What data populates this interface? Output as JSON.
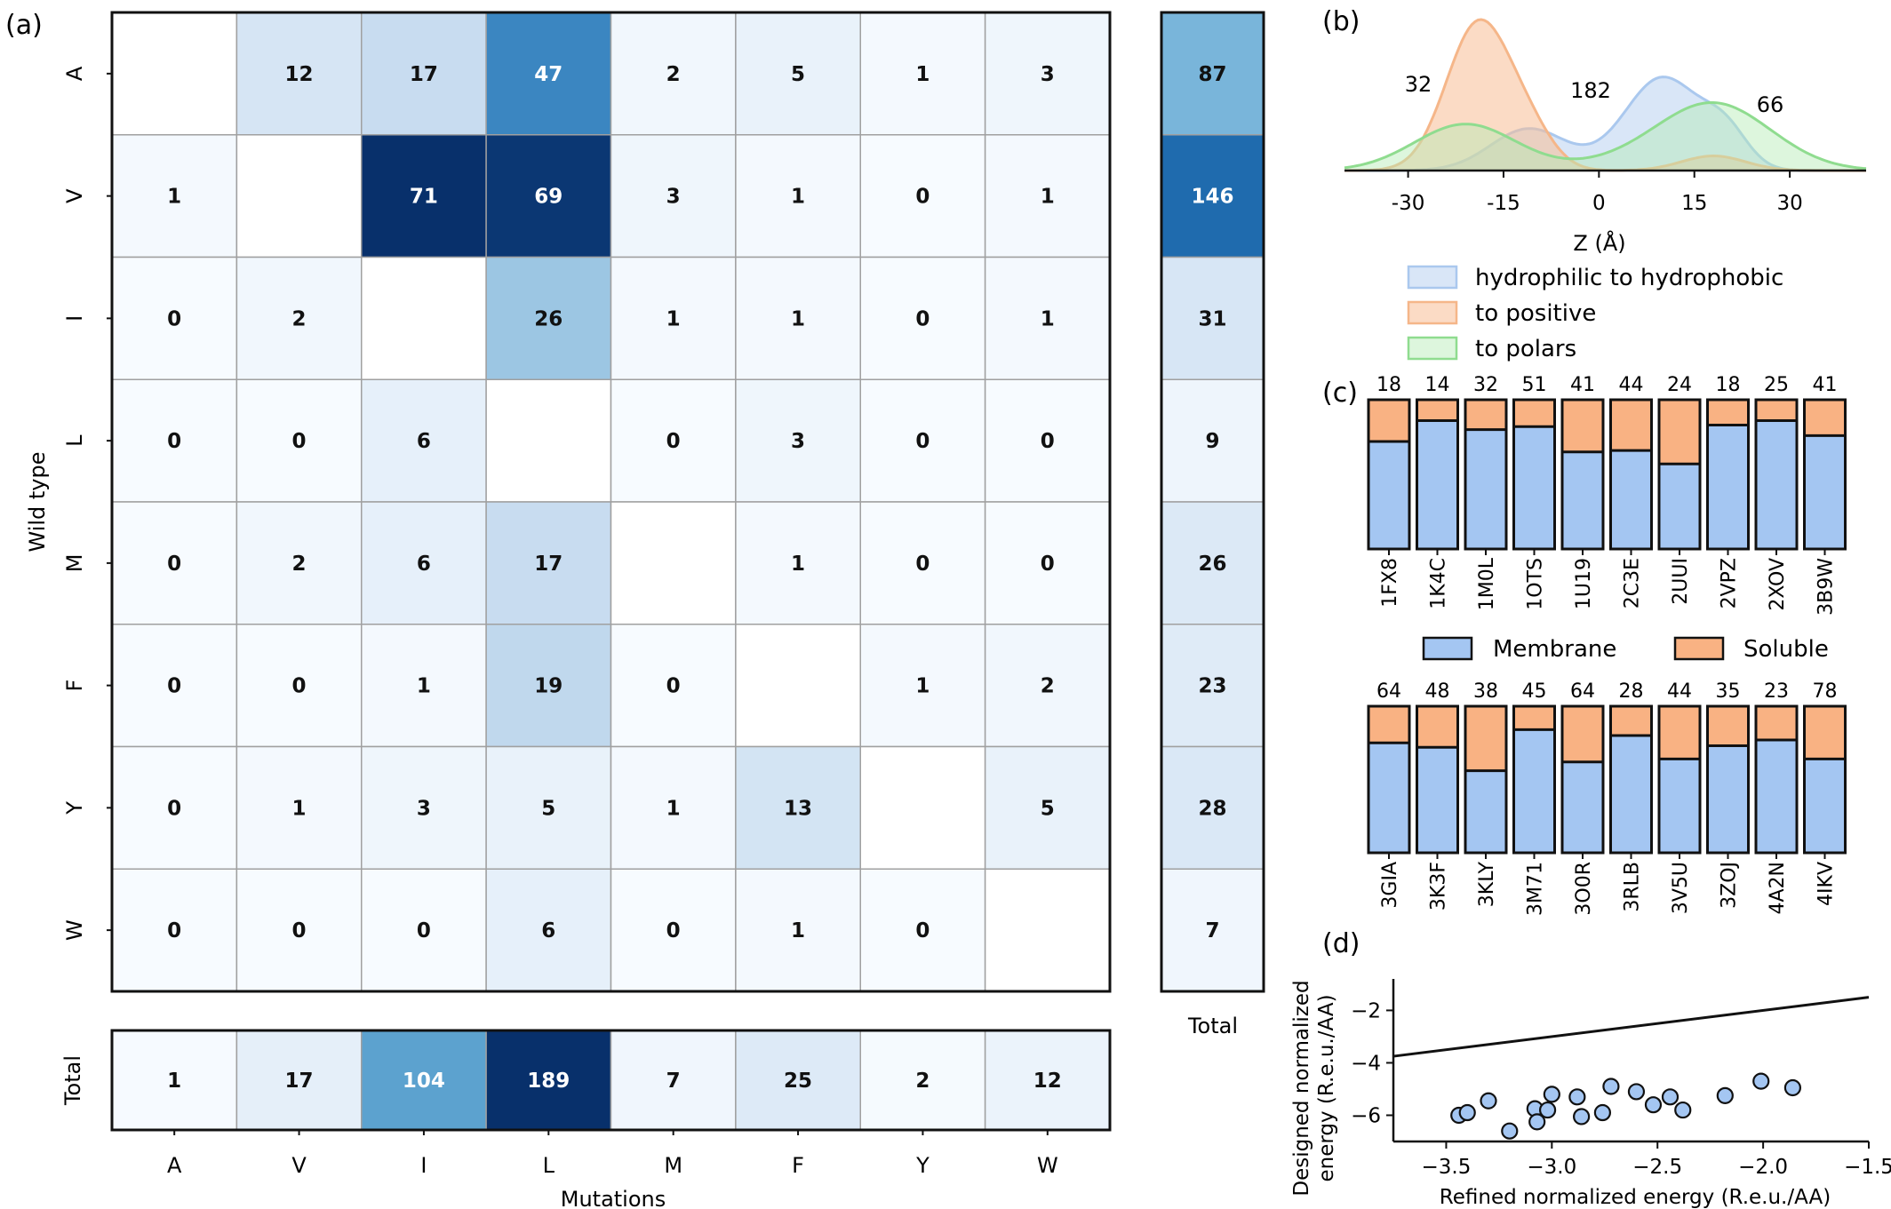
{
  "figure": {
    "panel_labels": [
      "(a)",
      "(b)",
      "(c)",
      "(d)"
    ]
  },
  "chart_data": [
    {
      "panel": "(a)",
      "type": "heatmap",
      "colormap": [
        "#f7fbff",
        "#c6dbef",
        "#6baed6",
        "#2171b5",
        "#08306b"
      ],
      "xlabel": "Mutations",
      "ylabel": "Wild type",
      "x_labels": [
        "A",
        "V",
        "I",
        "L",
        "M",
        "F",
        "Y",
        "W"
      ],
      "y_labels": [
        "A",
        "V",
        "I",
        "L",
        "M",
        "F",
        "Y",
        "W"
      ],
      "matrix": [
        [
          null,
          12,
          17,
          47,
          2,
          5,
          1,
          3
        ],
        [
          1,
          null,
          71,
          69,
          3,
          1,
          0,
          1
        ],
        [
          0,
          2,
          null,
          26,
          1,
          1,
          0,
          1
        ],
        [
          0,
          0,
          6,
          null,
          0,
          3,
          0,
          0
        ],
        [
          0,
          2,
          6,
          17,
          null,
          1,
          0,
          0
        ],
        [
          0,
          0,
          1,
          19,
          0,
          null,
          1,
          2
        ],
        [
          0,
          1,
          3,
          5,
          1,
          13,
          null,
          5
        ],
        [
          0,
          0,
          0,
          6,
          0,
          1,
          0,
          null
        ]
      ],
      "vmax": 71,
      "row_totals": [
        87,
        146,
        31,
        9,
        26,
        23,
        28,
        7
      ],
      "row_totals_vmax": 189,
      "col_totals": [
        1,
        17,
        104,
        189,
        7,
        25,
        2,
        12
      ],
      "col_totals_vmax": 189,
      "total_label": "Total"
    },
    {
      "panel": "(b)",
      "type": "area",
      "xlabel": "Z (Å)",
      "x_ticks": [
        -30,
        -15,
        0,
        15,
        30
      ],
      "xlim": [
        -40,
        42
      ],
      "series": [
        {
          "name": "hydrophilic to hydrophobic",
          "color": "#aac8ee",
          "fill": "rgba(170,200,238,0.45)",
          "count_label": "182",
          "gaussians": [
            [
              0.45,
              -11,
              6
            ],
            [
              1.0,
              10,
              6
            ],
            [
              0.35,
              20,
              3.5
            ]
          ]
        },
        {
          "name": "to positive",
          "color": "#f5b689",
          "fill": "rgba(248,190,150,0.55)",
          "count_label": "32",
          "gaussians": [
            [
              1.0,
              -19,
              5
            ],
            [
              0.22,
              -11,
              4
            ],
            [
              0.1,
              18,
              5
            ]
          ]
        },
        {
          "name": "to polars",
          "color": "#8fdc8f",
          "fill": "rgba(180,235,180,0.45)",
          "count_label": "66",
          "gaussians": [
            [
              0.45,
              -21,
              8
            ],
            [
              0.05,
              3,
              8
            ],
            [
              0.65,
              18,
              9
            ]
          ]
        }
      ]
    },
    {
      "panel": "(c)",
      "type": "bar",
      "stacked": true,
      "y_unit": "fraction",
      "legend": [
        "Membrane",
        "Soluble"
      ],
      "colors": {
        "Membrane": "#a4c6f2",
        "Soluble": "#f9b283"
      },
      "groups": [
        {
          "categories": [
            "1FX8",
            "1K4C",
            "1M0L",
            "1OTS",
            "1U19",
            "2C3E",
            "2UUI",
            "2VPZ",
            "2XOV",
            "3B9W"
          ],
          "totals": [
            18,
            14,
            32,
            51,
            41,
            44,
            24,
            18,
            25,
            41
          ],
          "membrane_fraction": [
            0.72,
            0.86,
            0.8,
            0.82,
            0.65,
            0.66,
            0.57,
            0.83,
            0.86,
            0.76
          ]
        },
        {
          "categories": [
            "3GIA",
            "3K3F",
            "3KLY",
            "3M71",
            "3O0R",
            "3RLB",
            "3V5U",
            "3ZOJ",
            "4A2N",
            "4IKV"
          ],
          "totals": [
            64,
            48,
            38,
            45,
            64,
            28,
            44,
            35,
            23,
            78
          ],
          "membrane_fraction": [
            0.75,
            0.72,
            0.56,
            0.84,
            0.62,
            0.8,
            0.64,
            0.73,
            0.77,
            0.64
          ]
        }
      ]
    },
    {
      "panel": "(d)",
      "type": "scatter",
      "xlabel": "Refined normalized energy (R.e.u./AA)",
      "ylabel_lines": [
        "Designed normalized",
        "energy (R.e.u./AA)"
      ],
      "xlim": [
        -3.75,
        -1.5
      ],
      "ylim": [
        -7.0,
        -0.8
      ],
      "x_ticks": [
        -3.5,
        -3.0,
        -2.5,
        -2.0,
        -1.5
      ],
      "y_ticks": [
        -2,
        -4,
        -6
      ],
      "point_color": "#a4c6f2",
      "diagonal": [
        [
          -3.75,
          -3.75
        ],
        [
          -1.5,
          -1.5
        ]
      ],
      "points": [
        [
          -3.44,
          -6.0
        ],
        [
          -3.4,
          -5.9
        ],
        [
          -3.3,
          -5.45
        ],
        [
          -3.2,
          -6.6
        ],
        [
          -3.08,
          -5.75
        ],
        [
          -3.07,
          -6.25
        ],
        [
          -3.02,
          -5.8
        ],
        [
          -3.0,
          -5.2
        ],
        [
          -2.88,
          -5.3
        ],
        [
          -2.86,
          -6.05
        ],
        [
          -2.76,
          -5.9
        ],
        [
          -2.72,
          -4.9
        ],
        [
          -2.6,
          -5.1
        ],
        [
          -2.52,
          -5.6
        ],
        [
          -2.44,
          -5.3
        ],
        [
          -2.38,
          -5.8
        ],
        [
          -2.18,
          -5.25
        ],
        [
          -2.01,
          -4.7
        ],
        [
          -1.86,
          -4.95
        ]
      ]
    }
  ]
}
